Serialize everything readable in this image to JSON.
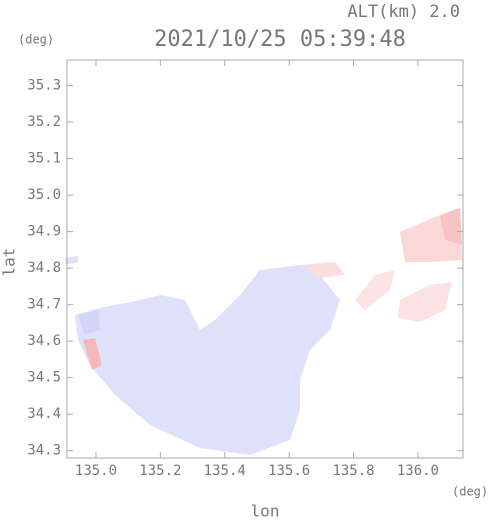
{
  "chart_data": {
    "type": "map",
    "title": "2021/10/25 05:39:48",
    "altitude_label": "ALT(km) 2.0",
    "y_unit": "(deg)",
    "x_unit": "(deg)",
    "ylabel": "lat",
    "xlabel": "lon",
    "xlim": [
      134.91,
      136.14
    ],
    "ylim": [
      34.28,
      35.37
    ],
    "xticks": [
      {
        "value": 135.0,
        "label": "135.0"
      },
      135.2,
      135.4,
      135.6,
      135.8,
      {
        "value": 136.0,
        "label": "136.0"
      }
    ],
    "yticks": [
      34.3,
      34.4,
      34.5,
      34.6,
      34.7,
      34.8,
      34.9,
      {
        "value": 35.0,
        "label": "35.0"
      },
      35.1,
      35.2,
      35.3
    ]
  }
}
